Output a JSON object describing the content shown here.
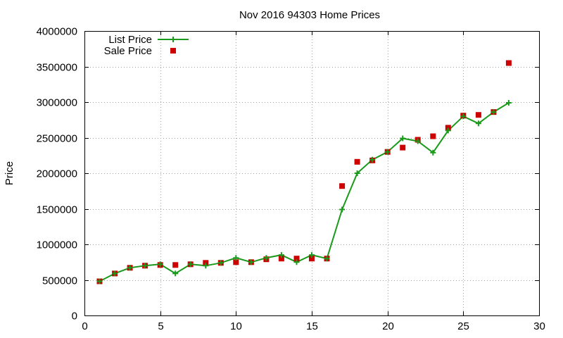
{
  "chart_data": {
    "type": "line",
    "title": "Nov 2016 94303 Home Prices",
    "xlabel": "",
    "ylabel": "Price",
    "xlim": [
      0,
      30
    ],
    "ylim": [
      0,
      4000000
    ],
    "x_ticks": [
      0,
      5,
      10,
      15,
      20,
      25,
      30
    ],
    "y_ticks": [
      0,
      500000,
      1000000,
      1500000,
      2000000,
      2500000,
      3000000,
      3500000,
      4000000
    ],
    "grid": true,
    "legend_position": "top-left",
    "colors": {
      "list_price": "#1a9a1a",
      "sale_price": "#cc0000"
    },
    "x": [
      1,
      2,
      3,
      4,
      5,
      6,
      7,
      8,
      9,
      10,
      11,
      12,
      13,
      14,
      15,
      16,
      17,
      18,
      19,
      20,
      21,
      22,
      23,
      24,
      25,
      26,
      27,
      28
    ],
    "series": [
      {
        "name": "List Price",
        "style": "linespoints",
        "values": [
          480000,
          590000,
          670000,
          700000,
          720000,
          590000,
          720000,
          700000,
          740000,
          810000,
          750000,
          810000,
          850000,
          750000,
          850000,
          800000,
          1490000,
          2000000,
          2190000,
          2300000,
          2490000,
          2450000,
          2290000,
          2600000,
          2800000,
          2700000,
          2860000,
          2990000
        ]
      },
      {
        "name": "Sale Price",
        "style": "points",
        "values": [
          480000,
          590000,
          670000,
          700000,
          710000,
          710000,
          720000,
          740000,
          740000,
          750000,
          750000,
          790000,
          800000,
          800000,
          800000,
          800000,
          1820000,
          2160000,
          2180000,
          2300000,
          2360000,
          2470000,
          2520000,
          2640000,
          2810000,
          2820000,
          2860000,
          3550000
        ]
      }
    ]
  }
}
